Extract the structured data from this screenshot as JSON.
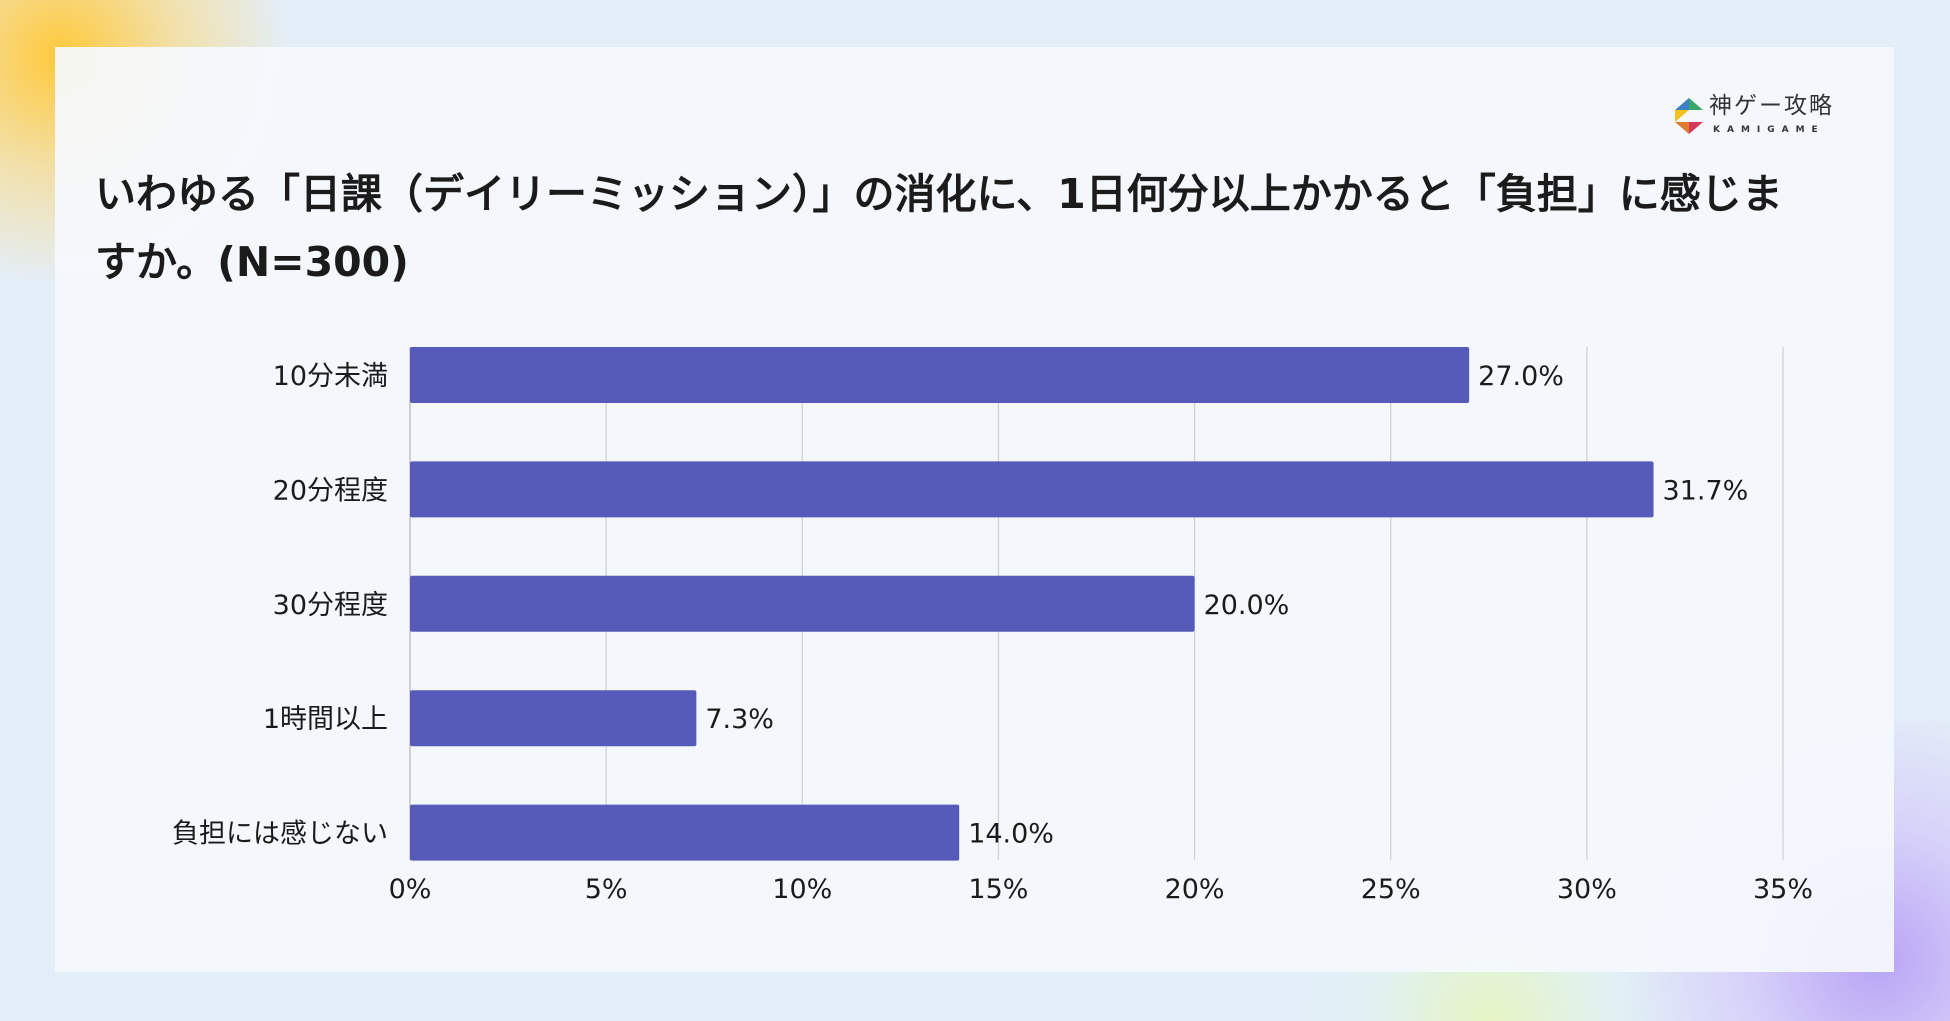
{
  "logo": {
    "text_jp": "神ゲー攻略",
    "text_en": "KAMIGAME"
  },
  "chart_data": {
    "type": "bar",
    "orientation": "horizontal",
    "title": "いわゆる「日課（デイリーミッション）」の消化に、1日何分以上かかると「負担」に感じますか。(N=300)",
    "categories": [
      "10分未満",
      "20分程度",
      "30分程度",
      "1時間以上",
      "負担には感じない"
    ],
    "values": [
      27.0,
      31.7,
      20.0,
      7.3,
      14.0
    ],
    "data_labels": [
      "27.0%",
      "31.7%",
      "20.0%",
      "7.3%",
      "14.0%"
    ],
    "xlim": [
      0,
      35
    ],
    "xticks": [
      "0%",
      "5%",
      "10%",
      "15%",
      "20%",
      "25%",
      "30%",
      "35%"
    ],
    "grid": "vertical",
    "bar_color": "#565bba"
  }
}
